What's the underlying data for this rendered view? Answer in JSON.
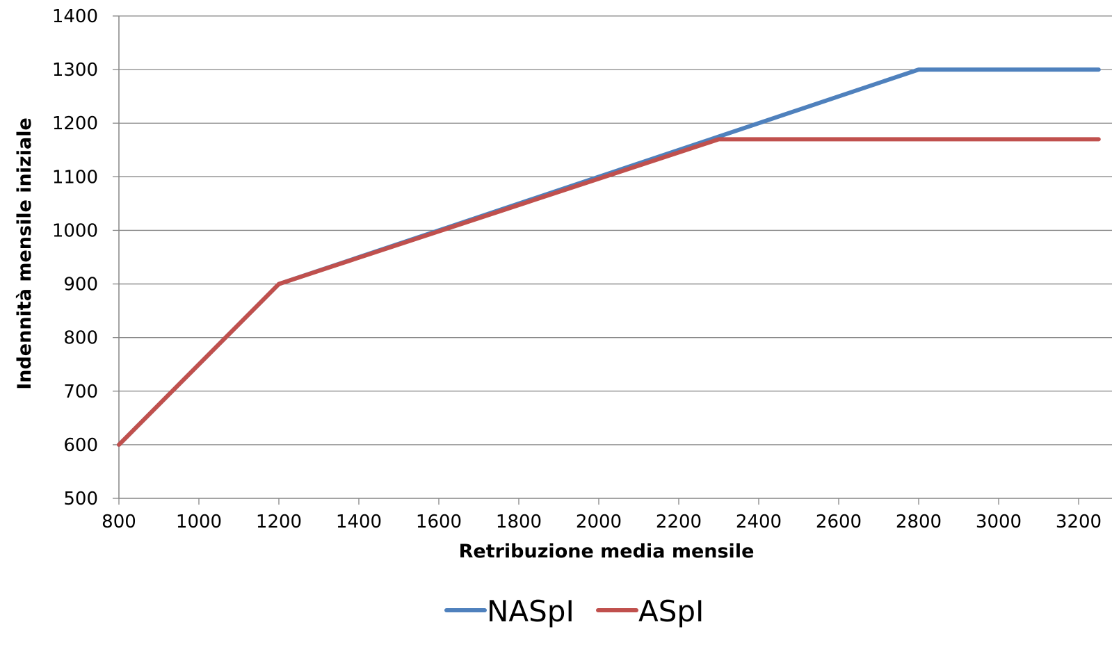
{
  "chart_data": {
    "type": "line",
    "title": "",
    "xlabel": "Retribuzione media mensile",
    "ylabel": "Indennità mensile iniziale",
    "xlim": [
      800,
      3250
    ],
    "ylim": [
      500,
      1400
    ],
    "x_ticks": [
      800,
      1000,
      1200,
      1400,
      1600,
      1800,
      2000,
      2200,
      2400,
      2600,
      2800,
      3000,
      3200
    ],
    "y_ticks": [
      500,
      600,
      700,
      800,
      900,
      1000,
      1100,
      1200,
      1300,
      1400
    ],
    "grid": "horizontal",
    "legend_position": "bottom",
    "series": [
      {
        "name": "NASpI",
        "color": "#4f81bd",
        "x": [
          800,
          1200,
          2300,
          2800,
          2850,
          3250
        ],
        "y": [
          600,
          900,
          1175,
          1300,
          1300,
          1300
        ]
      },
      {
        "name": "ASpI",
        "color": "#c0504d",
        "x": [
          800,
          1200,
          2300,
          3250
        ],
        "y": [
          600,
          900,
          1170,
          1170
        ]
      }
    ]
  }
}
